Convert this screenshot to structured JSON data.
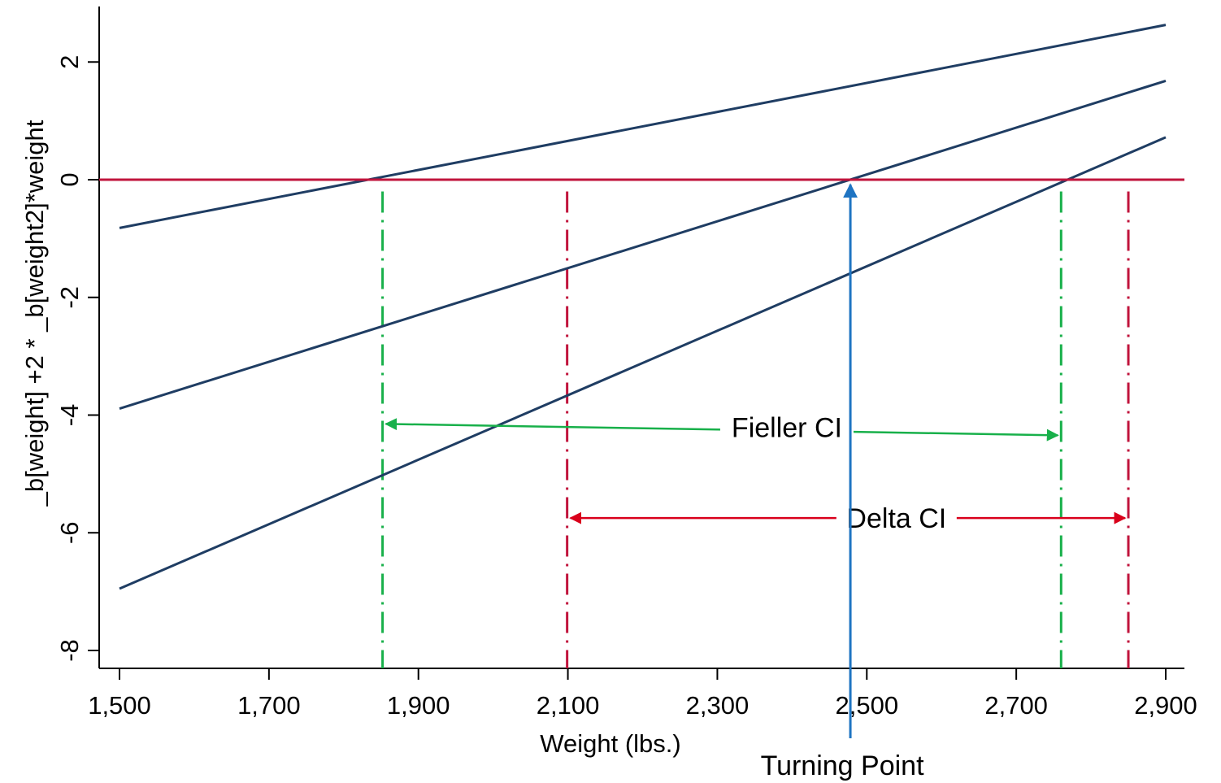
{
  "chart_data": {
    "type": "line",
    "title": "",
    "xlabel": "Weight (lbs.)",
    "ylabel": "_b[weight] +2 * _b[weight2]*weight",
    "xlim": [
      1475,
      2925
    ],
    "ylim": [
      -8.4,
      2.9
    ],
    "x_ticks": [
      1500,
      1700,
      1900,
      2100,
      2300,
      2500,
      2700,
      2900
    ],
    "x_tick_labels": [
      "1,500",
      "1,700",
      "1,900",
      "2,100",
      "2,300",
      "2,500",
      "2,700",
      "2,900"
    ],
    "y_ticks": [
      2,
      0,
      -2,
      -4,
      -6,
      -8
    ],
    "y_tick_labels": [
      "2",
      "0",
      "-2",
      "-4",
      "-6",
      "-8"
    ],
    "grid": false,
    "legend": "none",
    "series": [
      {
        "x": [
          1500,
          2900
        ],
        "y": [
          -0.82,
          2.63
        ]
      },
      {
        "x": [
          1500,
          2900
        ],
        "y": [
          -3.89,
          1.68
        ]
      },
      {
        "x": [
          1500,
          2900
        ],
        "y": [
          -6.95,
          0.72
        ]
      }
    ],
    "series_color": "#1f3d63",
    "zero_line": {
      "y": 0,
      "color": "#c0143c"
    },
    "fieller_ci": {
      "label": "Fieller CI",
      "lower": 1852,
      "upper": 2760,
      "y": -4.15,
      "color": "#18b04a"
    },
    "delta_ci": {
      "label": "Delta CI",
      "lower": 2099,
      "upper": 2850,
      "y": -5.75,
      "color": "#d9001b",
      "vline_color": "#c0143c"
    },
    "turning_point": {
      "label": "Turning Point",
      "x": 2478,
      "y": 0,
      "color": "#1e74c2"
    }
  }
}
